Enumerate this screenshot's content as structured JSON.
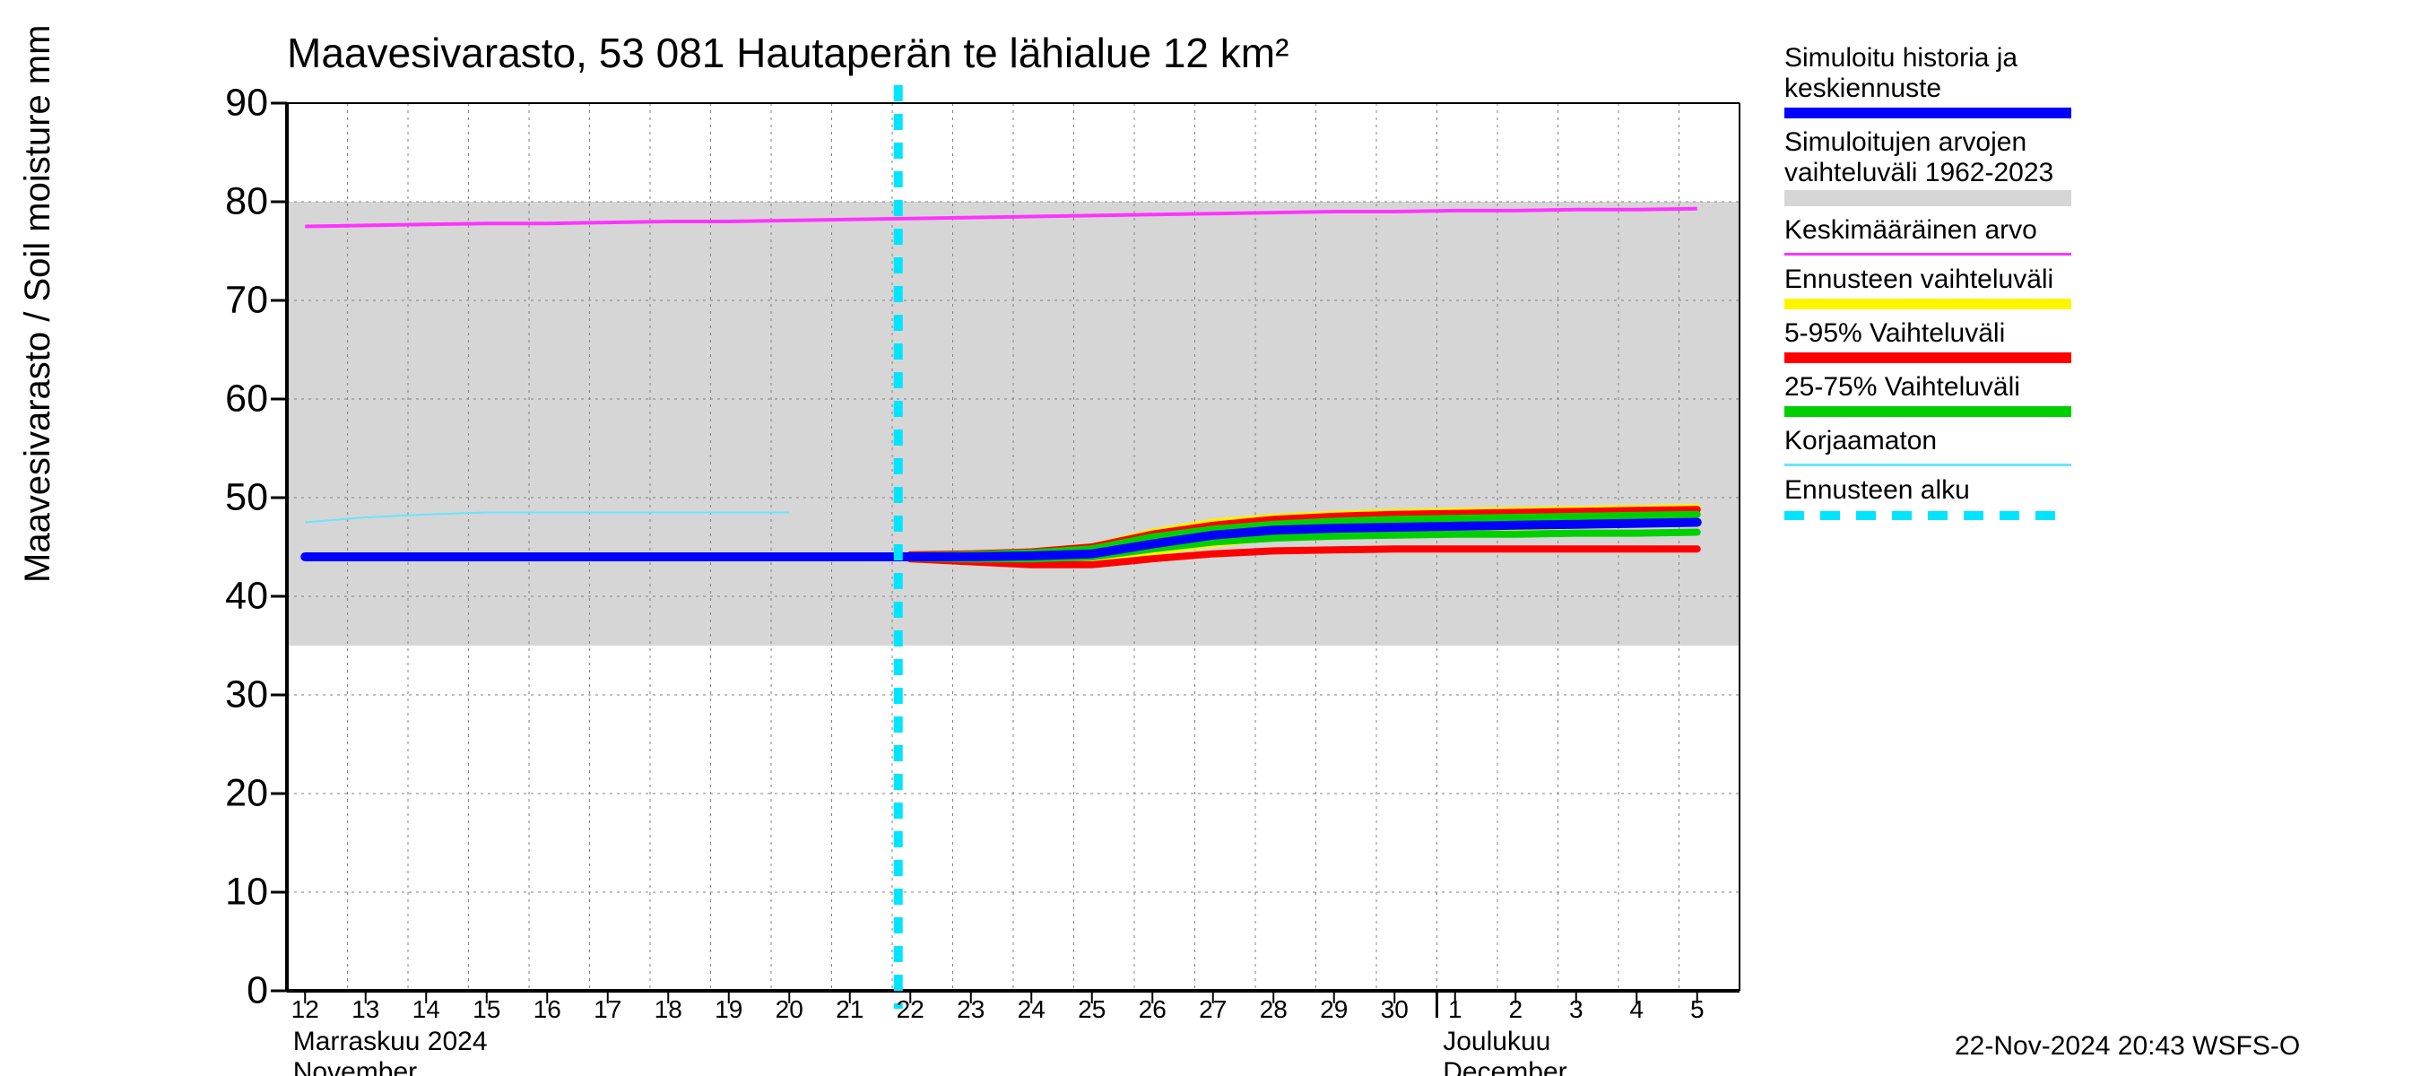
{
  "chart": {
    "type": "line",
    "title": "Maavesivarasto, 53 081 Hautaperän te lähialue 12 km²",
    "y_axis_label": "Maavesivarasto / Soil moisture   mm",
    "background_color": "#ffffff",
    "plot_bg_band_color": "#d6d6d6",
    "gridline_color": "#bfbfbf",
    "axis_color": "#000000",
    "title_fontsize": 46,
    "axis_label_fontsize": 40,
    "tick_fontsize_y": 43,
    "tick_fontsize_x": 28,
    "ylim": [
      0,
      90
    ],
    "yticks": [
      0,
      10,
      20,
      30,
      40,
      50,
      60,
      70,
      80,
      90
    ],
    "x_days": [
      "12",
      "13",
      "14",
      "15",
      "16",
      "17",
      "18",
      "19",
      "20",
      "21",
      "22",
      "23",
      "24",
      "25",
      "26",
      "27",
      "28",
      "29",
      "30",
      "1",
      "2",
      "3",
      "4",
      "5"
    ],
    "x_gridlines_every": 1,
    "x_month_break_index": 19,
    "x_month_labels": [
      {
        "fi": "Marraskuu 2024",
        "en": "November",
        "at_index": 0
      },
      {
        "fi": "Joulukuu",
        "en": "December",
        "at_index": 19
      }
    ],
    "sim_range_band": {
      "low": 35,
      "high": 80,
      "color": "#d6d6d6"
    },
    "series": {
      "mean_value_pink": {
        "color": "#ff33ff",
        "width": 4,
        "values": [
          77.5,
          77.6,
          77.7,
          77.8,
          77.8,
          77.9,
          78.0,
          78.0,
          78.1,
          78.2,
          78.3,
          78.4,
          78.5,
          78.6,
          78.7,
          78.8,
          78.9,
          79.0,
          79.0,
          79.1,
          79.1,
          79.2,
          79.2,
          79.3
        ]
      },
      "uncorrected_cyan_thin": {
        "color": "#66e6ff",
        "width": 2,
        "values": [
          47.5,
          48.0,
          48.3,
          48.5,
          48.5,
          48.5,
          48.5,
          48.5,
          48.5,
          null,
          null,
          null,
          null,
          null,
          null,
          null,
          null,
          null,
          null,
          null,
          null,
          null,
          null,
          null
        ]
      },
      "forecast_yellow": {
        "color": "#fff500",
        "width": 8,
        "low": [
          null,
          null,
          null,
          null,
          null,
          null,
          null,
          null,
          null,
          null,
          43.8,
          43.5,
          43.3,
          43.5,
          44.5,
          45.3,
          46.0,
          46.3,
          46.6,
          46.8,
          47.0,
          47.2,
          47.4,
          47.6
        ],
        "high": [
          null,
          null,
          null,
          null,
          null,
          null,
          null,
          null,
          null,
          null,
          44.2,
          44.3,
          44.5,
          45.0,
          46.5,
          47.5,
          48.0,
          48.3,
          48.5,
          48.6,
          48.7,
          48.8,
          48.9,
          49.0
        ]
      },
      "red_5_95": {
        "color": "#ff0000",
        "width": 8,
        "low": [
          null,
          null,
          null,
          null,
          null,
          null,
          null,
          null,
          null,
          null,
          43.8,
          43.5,
          43.2,
          43.2,
          43.8,
          44.3,
          44.6,
          44.7,
          44.8,
          44.8,
          44.8,
          44.8,
          44.8,
          44.8
        ],
        "high": [
          null,
          null,
          null,
          null,
          null,
          null,
          null,
          null,
          null,
          null,
          44.2,
          44.3,
          44.5,
          45.0,
          46.3,
          47.2,
          47.8,
          48.1,
          48.3,
          48.4,
          48.5,
          48.6,
          48.7,
          48.8
        ]
      },
      "green_25_75": {
        "color": "#00d000",
        "width": 8,
        "low": [
          null,
          null,
          null,
          null,
          null,
          null,
          null,
          null,
          null,
          null,
          43.9,
          43.8,
          43.8,
          44.0,
          44.8,
          45.5,
          45.9,
          46.1,
          46.2,
          46.3,
          46.3,
          46.4,
          46.4,
          46.5
        ],
        "high": [
          null,
          null,
          null,
          null,
          null,
          null,
          null,
          null,
          null,
          null,
          44.1,
          44.2,
          44.4,
          44.8,
          46.0,
          46.8,
          47.3,
          47.6,
          47.8,
          47.9,
          48.0,
          48.1,
          48.2,
          48.3
        ]
      },
      "blue_sim_central": {
        "color": "#0000ff",
        "width": 10,
        "values": [
          44.0,
          44.0,
          44.0,
          44.0,
          44.0,
          44.0,
          44.0,
          44.0,
          44.0,
          44.0,
          44.0,
          44.0,
          44.1,
          44.3,
          45.3,
          46.2,
          46.7,
          46.9,
          47.0,
          47.1,
          47.2,
          47.3,
          47.4,
          47.5
        ]
      }
    },
    "forecast_start": {
      "day_index_fractional": 9.8,
      "color": "#00e5ff",
      "dash": [
        18,
        14
      ],
      "width": 10
    }
  },
  "legend": {
    "entries": [
      {
        "label": "Simuloitu historia ja\nkeskiennuste",
        "color": "#0000ff",
        "style": "thick"
      },
      {
        "label": "Simuloitujen arvojen\nvaihteluväli 1962-2023",
        "color": "#d6d6d6",
        "style": "med"
      },
      {
        "label": "Keskimääräinen arvo",
        "color": "#ff33ff",
        "style": "thin"
      },
      {
        "label": "Ennusteen vaihteluväli",
        "color": "#fff500",
        "style": "thick"
      },
      {
        "label": "5-95% Vaihteluväli",
        "color": "#ff0000",
        "style": "thick"
      },
      {
        "label": "25-75% Vaihteluväli",
        "color": "#00d000",
        "style": "thick"
      },
      {
        "label": "Korjaamaton",
        "color": "#66e6ff",
        "style": "thin"
      },
      {
        "label": "Ennusteen alku",
        "color": "#00e5ff",
        "style": "dashed"
      }
    ]
  },
  "footer_timestamp": "22-Nov-2024 20:43 WSFS-O"
}
